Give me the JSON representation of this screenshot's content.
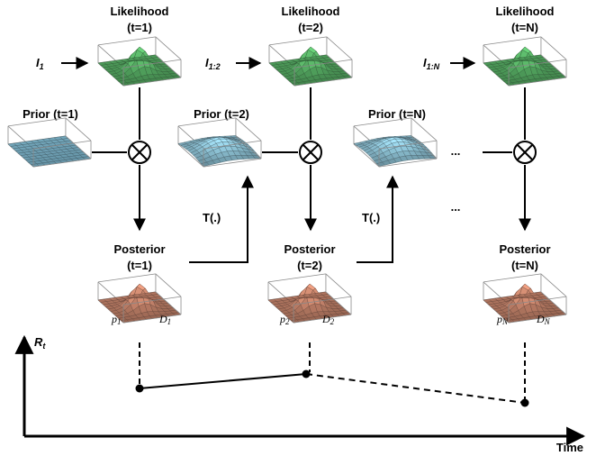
{
  "likelihood": [
    {
      "title": "Likelihood",
      "time": "(t=1)",
      "input": {
        "base": "I",
        "sub": "1"
      }
    },
    {
      "title": "Likelihood",
      "time": "(t=2)",
      "input": {
        "base": "I",
        "sub": "1:2"
      }
    },
    {
      "title": "Likelihood",
      "time": "(t=N)",
      "input": {
        "base": "I",
        "sub": "1:N"
      }
    }
  ],
  "prior": [
    {
      "label": "Prior (t=1)"
    },
    {
      "label": "Prior (t=2)"
    },
    {
      "label": "Prior (t=N)"
    }
  ],
  "posterior": [
    {
      "title": "Posterior",
      "time": "(t=1)",
      "p": {
        "base": "p",
        "sub": "1"
      },
      "d": {
        "base": "D",
        "sub": "1"
      }
    },
    {
      "title": "Posterior",
      "time": "(t=2)",
      "p": {
        "base": "p",
        "sub": "2"
      },
      "d": {
        "base": "D",
        "sub": "2"
      }
    },
    {
      "title": "Posterior",
      "time": "(t=N)",
      "p": {
        "base": "p",
        "sub": "N"
      },
      "d": {
        "base": "D",
        "sub": "N"
      }
    }
  ],
  "transition": [
    "T(.)",
    "T(.)"
  ],
  "ellipsis": [
    "...",
    "..."
  ],
  "axis": {
    "y_base": "R",
    "y_sub": "t",
    "x_label": "Time"
  },
  "colors": {
    "likelihood": "#5fbf6e",
    "prior_flat": "#7fb8cf",
    "prior_bump": "#8ec3d6",
    "posterior": "#d89075"
  },
  "ops": [
    "multiply-icon",
    "multiply-icon",
    "multiply-icon"
  ]
}
